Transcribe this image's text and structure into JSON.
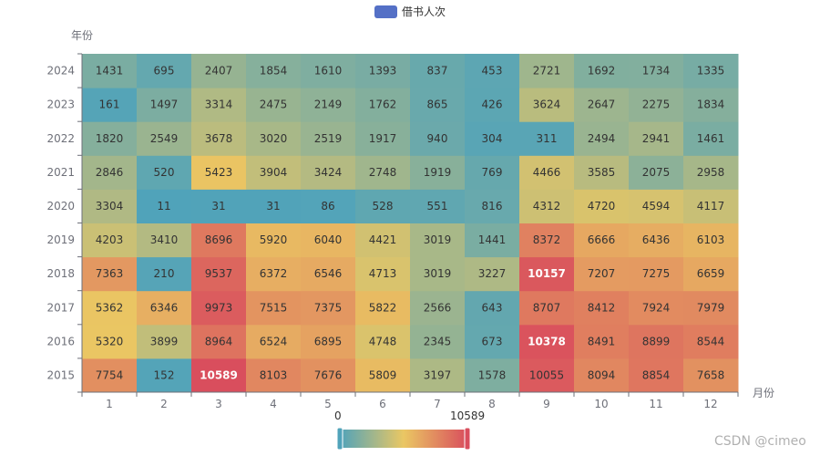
{
  "legend": {
    "label": "借书人次",
    "color": "#5470c6"
  },
  "watermark": "CSDN @cimeo",
  "chart_data": {
    "type": "heatmap",
    "xlabel": "月份",
    "ylabel": "年份",
    "x_categories": [
      "1",
      "2",
      "3",
      "4",
      "5",
      "6",
      "7",
      "8",
      "9",
      "10",
      "11",
      "12"
    ],
    "y_categories": [
      "2015",
      "2016",
      "2017",
      "2018",
      "2019",
      "2020",
      "2021",
      "2022",
      "2023",
      "2024"
    ],
    "values": [
      [
        7754,
        152,
        10589,
        8103,
        7676,
        5809,
        3197,
        1578,
        10055,
        8094,
        8854,
        7658
      ],
      [
        5320,
        3899,
        8964,
        6524,
        6895,
        4748,
        2345,
        673,
        10378,
        8491,
        8899,
        8544
      ],
      [
        5362,
        6346,
        9973,
        7515,
        7375,
        5822,
        2566,
        643,
        8707,
        8412,
        7924,
        7979
      ],
      [
        7363,
        210,
        9537,
        6372,
        6546,
        4713,
        3019,
        3227,
        10157,
        7207,
        7275,
        6659
      ],
      [
        4203,
        3410,
        8696,
        5920,
        6040,
        4421,
        3019,
        1441,
        8372,
        6666,
        6436,
        6103
      ],
      [
        3304,
        11,
        31,
        31,
        86,
        528,
        551,
        816,
        4312,
        4720,
        4594,
        4117
      ],
      [
        2846,
        520,
        5423,
        3904,
        3424,
        2748,
        1919,
        769,
        4466,
        3585,
        2075,
        2958
      ],
      [
        1820,
        2549,
        3678,
        3020,
        2519,
        1917,
        940,
        304,
        311,
        2494,
        2941,
        1461
      ],
      [
        161,
        1497,
        3314,
        2475,
        2149,
        1762,
        865,
        426,
        3624,
        2647,
        2275,
        1834
      ],
      [
        1431,
        695,
        2407,
        1854,
        1610,
        1393,
        837,
        453,
        2721,
        1692,
        1734,
        1335
      ]
    ],
    "visual_map": {
      "min": 0,
      "max": 10589,
      "min_label": "0",
      "max_label": "10589",
      "colors": [
        "#50a3ba",
        "#eac763",
        "#d94e5d"
      ]
    },
    "legend_position": "top-center"
  }
}
